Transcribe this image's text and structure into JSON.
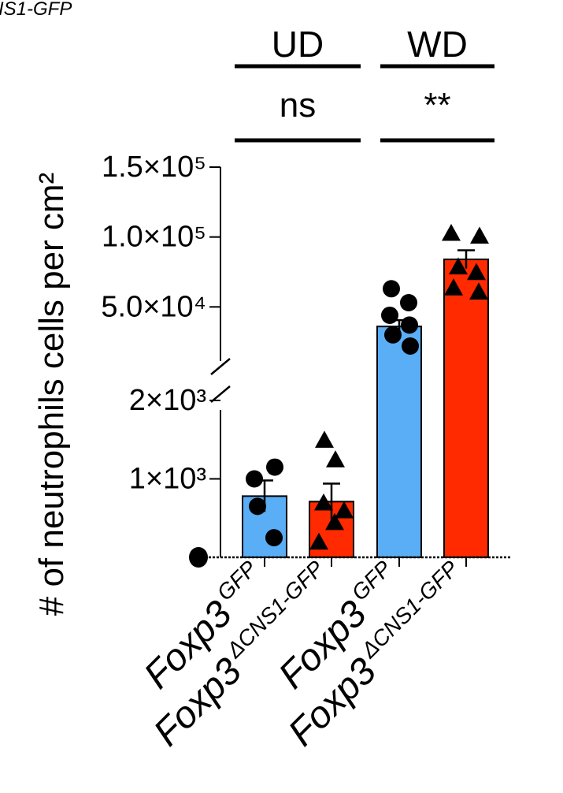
{
  "corner_label": "IS1-GFP",
  "colors": {
    "gfp": "#5aaef5",
    "cns1": "#ff2a00",
    "ink": "#000000"
  },
  "chart_data": {
    "type": "bar",
    "ylabel": "# of  neutrophils cells per cm²",
    "y_axis_broken": true,
    "y_lower_range": [
      0,
      2000
    ],
    "y_upper_range": [
      0,
      150000
    ],
    "y_tick_labels": [
      "1.5×10⁵",
      "1.0×10⁵",
      "5.0×10⁴",
      "2×10³",
      "1×10³"
    ],
    "groups": [
      {
        "label": "UD",
        "significance": "ns"
      },
      {
        "label": "WD",
        "significance": "**"
      }
    ],
    "categories": [
      {
        "name": "Foxp3",
        "superscript": "GFP",
        "group": "UD"
      },
      {
        "name": "Foxp3",
        "superscript": "ΔCNS1-GFP",
        "group": "UD"
      },
      {
        "name": "Foxp3",
        "superscript": "GFP",
        "group": "WD"
      },
      {
        "name": "Foxp3",
        "superscript": "ΔCNS1-GFP",
        "group": "WD"
      }
    ],
    "bars": [
      {
        "mean": 780,
        "sem": 200,
        "color_key": "gfp",
        "marker": "circle",
        "points": [
          650,
          250,
          1000,
          1150
        ]
      },
      {
        "mean": 710,
        "sem": 230,
        "color_key": "cns1",
        "marker": "triangle",
        "points": [
          1500,
          1250,
          700,
          600,
          450,
          200
        ]
      },
      {
        "mean": 36000,
        "sem": 4500,
        "color_key": "gfp",
        "marker": "circle",
        "points": [
          63000,
          53000,
          44000,
          37000,
          30000,
          22000
        ]
      },
      {
        "mean": 84000,
        "sem": 6500,
        "color_key": "cns1",
        "marker": "triangle",
        "points": [
          103000,
          101000,
          79000,
          75000,
          64000,
          61000
        ]
      }
    ],
    "zero_cluster_marker": "circle"
  }
}
